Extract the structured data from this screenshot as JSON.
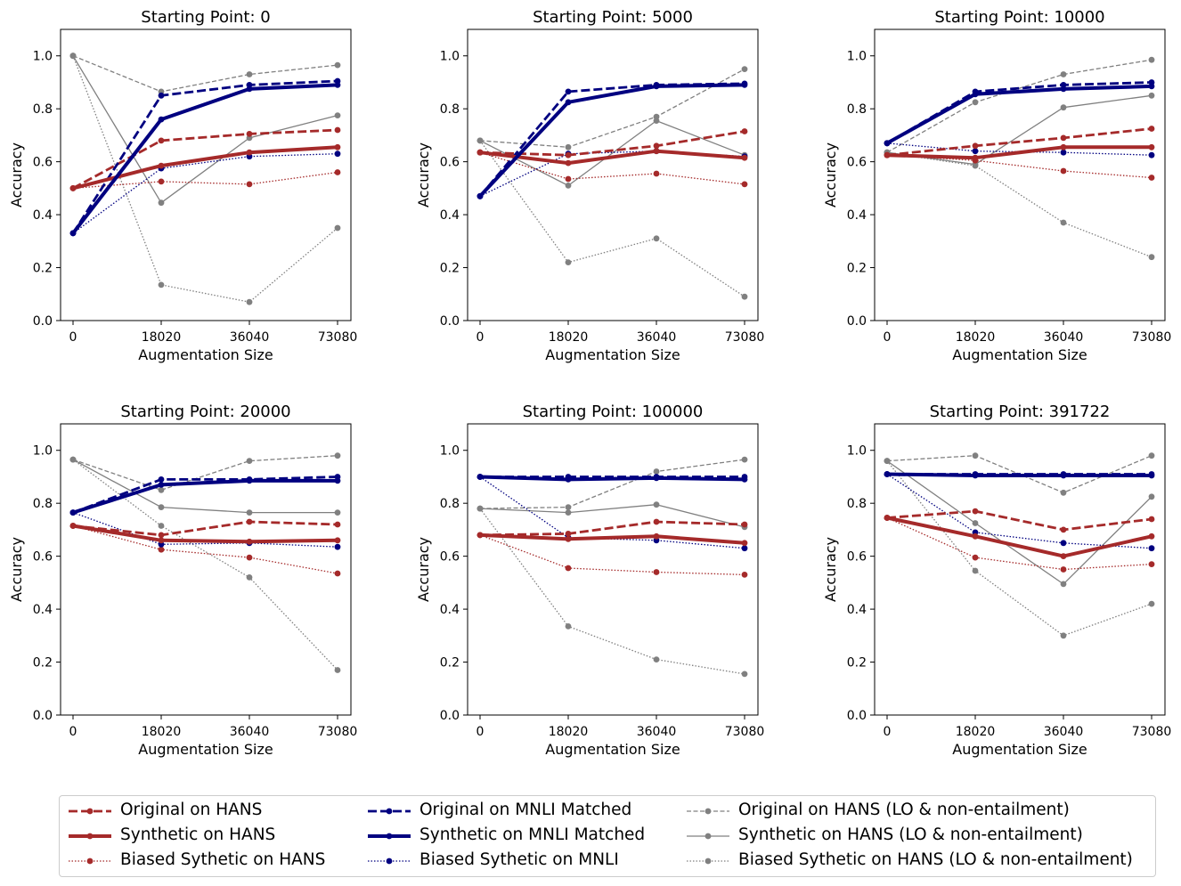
{
  "chart_data": {
    "type": "line",
    "panel_titles": [
      "Starting Point: 0",
      "Starting Point: 5000",
      "Starting Point: 10000",
      "Starting Point: 20000",
      "Starting Point: 100000",
      "Starting Point: 391722"
    ],
    "categories": [
      "0",
      "18020",
      "36040",
      "73080"
    ],
    "xlabel": "Augmentation Size",
    "ylabel": "Accuracy",
    "ylim": [
      0,
      1.1
    ],
    "yticks": [
      "0.0",
      "0.2",
      "0.4",
      "0.6",
      "0.8",
      "1.0"
    ],
    "series_styles": [
      {
        "name": "Original on HANS",
        "color": "#a52a2a",
        "dash": "dashed",
        "weight": "medium"
      },
      {
        "name": "Synthetic on HANS",
        "color": "#a52a2a",
        "dash": "solid",
        "weight": "heavy"
      },
      {
        "name": "Biased Sythetic on HANS",
        "color": "#a52a2a",
        "dash": "dotted",
        "weight": "thin"
      },
      {
        "name": "Original on MNLI Matched",
        "color": "#000080",
        "dash": "dashed",
        "weight": "medium"
      },
      {
        "name": "Synthetic on MNLI Matched",
        "color": "#000080",
        "dash": "solid",
        "weight": "heavy"
      },
      {
        "name": "Biased Sythetic on MNLI",
        "color": "#000080",
        "dash": "dotted",
        "weight": "thin"
      },
      {
        "name": "Original on HANS (LO & non-entailment)",
        "color": "#808080",
        "dash": "dashed",
        "weight": "thin"
      },
      {
        "name": "Synthetic on HANS (LO & non-entailment)",
        "color": "#808080",
        "dash": "solid",
        "weight": "thin"
      },
      {
        "name": "Biased Sythetic on HANS (LO & non-entailment)",
        "color": "#808080",
        "dash": "dotted",
        "weight": "thin"
      }
    ],
    "panels": [
      {
        "values": [
          [
            0.5,
            0.68,
            0.705,
            0.72
          ],
          [
            0.5,
            0.585,
            0.635,
            0.655
          ],
          [
            0.5,
            0.525,
            0.515,
            0.56
          ],
          [
            0.33,
            0.85,
            0.89,
            0.905
          ],
          [
            0.33,
            0.76,
            0.875,
            0.89
          ],
          [
            0.33,
            0.575,
            0.62,
            0.63
          ],
          [
            1.0,
            0.865,
            0.93,
            0.965
          ],
          [
            1.0,
            0.445,
            0.69,
            0.775
          ],
          [
            1.0,
            0.135,
            0.07,
            0.35
          ]
        ]
      },
      {
        "values": [
          [
            0.635,
            0.625,
            0.66,
            0.715
          ],
          [
            0.635,
            0.595,
            0.64,
            0.615
          ],
          [
            0.635,
            0.535,
            0.555,
            0.515
          ],
          [
            0.47,
            0.865,
            0.89,
            0.895
          ],
          [
            0.47,
            0.825,
            0.885,
            0.89
          ],
          [
            0.47,
            0.63,
            0.64,
            0.62
          ],
          [
            0.68,
            0.655,
            0.77,
            0.95
          ],
          [
            0.68,
            0.51,
            0.755,
            0.625
          ],
          [
            0.68,
            0.22,
            0.31,
            0.09
          ]
        ]
      },
      {
        "values": [
          [
            0.625,
            0.66,
            0.69,
            0.725
          ],
          [
            0.625,
            0.615,
            0.655,
            0.655
          ],
          [
            0.625,
            0.605,
            0.565,
            0.54
          ],
          [
            0.67,
            0.865,
            0.89,
            0.9
          ],
          [
            0.67,
            0.855,
            0.875,
            0.885
          ],
          [
            0.67,
            0.64,
            0.635,
            0.625
          ],
          [
            0.635,
            0.825,
            0.93,
            0.985
          ],
          [
            0.635,
            0.59,
            0.805,
            0.85
          ],
          [
            0.635,
            0.585,
            0.37,
            0.24
          ]
        ]
      },
      {
        "values": [
          [
            0.715,
            0.68,
            0.73,
            0.72
          ],
          [
            0.715,
            0.66,
            0.655,
            0.66
          ],
          [
            0.715,
            0.625,
            0.595,
            0.535
          ],
          [
            0.765,
            0.89,
            0.89,
            0.9
          ],
          [
            0.765,
            0.87,
            0.885,
            0.885
          ],
          [
            0.765,
            0.645,
            0.65,
            0.635
          ],
          [
            0.965,
            0.85,
            0.96,
            0.98
          ],
          [
            0.965,
            0.785,
            0.765,
            0.765
          ],
          [
            0.965,
            0.715,
            0.52,
            0.17
          ]
        ]
      },
      {
        "values": [
          [
            0.68,
            0.685,
            0.73,
            0.72
          ],
          [
            0.68,
            0.665,
            0.675,
            0.65
          ],
          [
            0.68,
            0.555,
            0.54,
            0.53
          ],
          [
            0.9,
            0.9,
            0.9,
            0.9
          ],
          [
            0.9,
            0.89,
            0.895,
            0.89
          ],
          [
            0.9,
            0.67,
            0.66,
            0.63
          ],
          [
            0.78,
            0.785,
            0.92,
            0.965
          ],
          [
            0.78,
            0.765,
            0.795,
            0.71
          ],
          [
            0.78,
            0.335,
            0.21,
            0.155
          ]
        ]
      },
      {
        "values": [
          [
            0.745,
            0.77,
            0.7,
            0.74
          ],
          [
            0.745,
            0.675,
            0.6,
            0.675
          ],
          [
            0.745,
            0.595,
            0.55,
            0.57
          ],
          [
            0.91,
            0.91,
            0.91,
            0.91
          ],
          [
            0.91,
            0.905,
            0.905,
            0.905
          ],
          [
            0.91,
            0.69,
            0.65,
            0.63
          ],
          [
            0.96,
            0.98,
            0.84,
            0.98
          ],
          [
            0.96,
            0.725,
            0.495,
            0.825
          ],
          [
            0.96,
            0.545,
            0.3,
            0.42
          ]
        ]
      }
    ]
  }
}
